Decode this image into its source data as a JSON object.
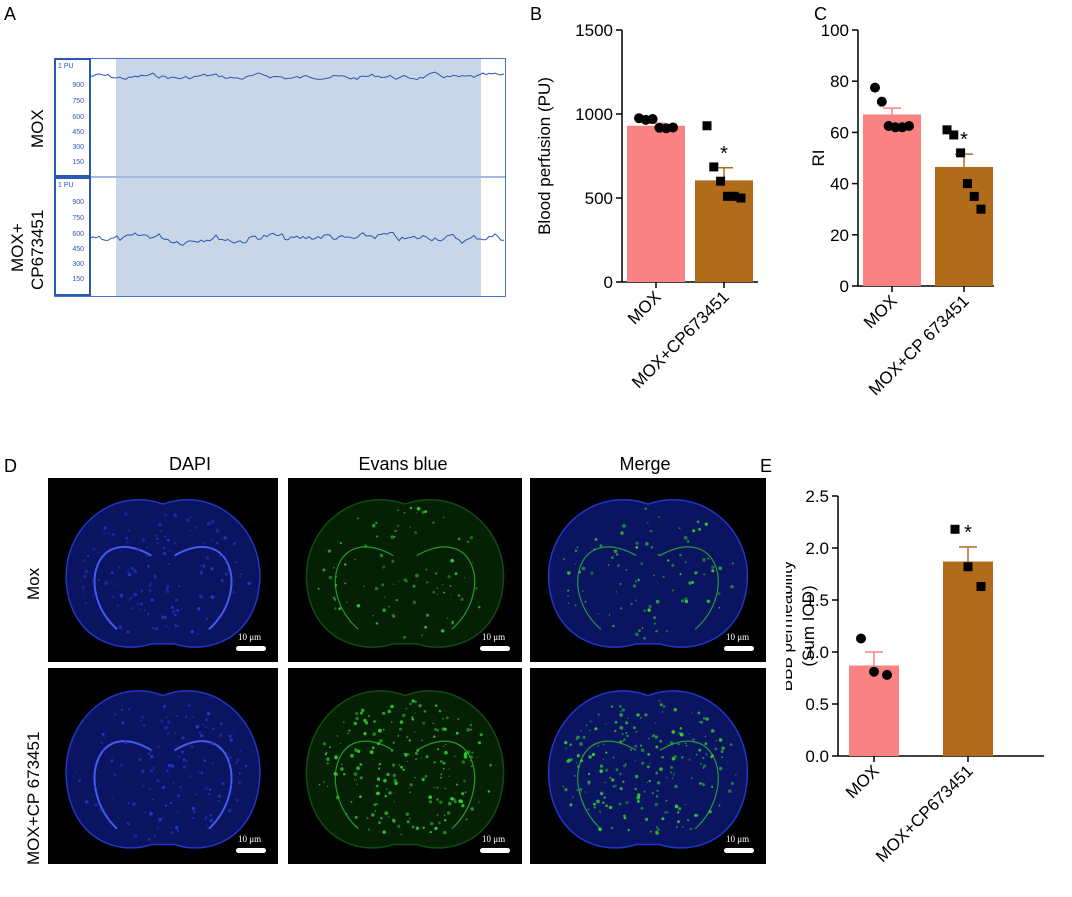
{
  "panels": {
    "A": "A",
    "B": "B",
    "C": "C",
    "D": "D",
    "E": "E"
  },
  "traces": {
    "unit": "1 PU",
    "ticks": [
      "900",
      "750",
      "600",
      "450",
      "300",
      "150"
    ],
    "row_labels": [
      "MOX",
      "MOX+\nCP673451"
    ],
    "row1_label": "MOX",
    "row2_label_line1": "MOX+",
    "row2_label_line2": "CP673451"
  },
  "micro": {
    "columns": [
      "DAPI",
      "Evans blue",
      "Merge"
    ],
    "rows": [
      "Mox",
      "MOX+CP 673451"
    ],
    "scale": "10 μm",
    "colors": {
      "dapi": "#2236c8",
      "evans": "#2fd12f"
    }
  },
  "chart_data": [
    {
      "id": "B",
      "type": "bar",
      "categories": [
        "MOX",
        "MOX+CP673451"
      ],
      "values": [
        930,
        605
      ],
      "errors": [
        15,
        75
      ],
      "points": [
        [
          975,
          965,
          970,
          918,
          915,
          920
        ],
        [
          930,
          685,
          600,
          510,
          510,
          500
        ]
      ],
      "colors": [
        "#f98283",
        "#b06c1b"
      ],
      "ylabel": "Blood perfusion (PU)",
      "ylim": [
        0,
        1500
      ],
      "yticks": [
        "0",
        "500",
        "1000",
        "1500"
      ],
      "significance": [
        "",
        "*"
      ]
    },
    {
      "id": "C",
      "type": "bar",
      "categories": [
        "MOX",
        "MOX+CP 673451"
      ],
      "values": [
        67,
        46.5
      ],
      "errors": [
        2.5,
        5
      ],
      "points": [
        [
          77.5,
          72,
          62.5,
          62,
          62,
          62.5
        ],
        [
          61,
          59,
          52,
          40,
          35,
          30
        ]
      ],
      "colors": [
        "#f98283",
        "#b06c1b"
      ],
      "ylabel": "RI",
      "ylim": [
        0,
        100
      ],
      "yticks": [
        "0",
        "20",
        "40",
        "60",
        "80",
        "100"
      ],
      "significance": [
        "",
        "*"
      ]
    },
    {
      "id": "E",
      "type": "bar",
      "categories": [
        "MOX",
        "MOX+CP673451"
      ],
      "values": [
        0.87,
        1.87
      ],
      "errors": [
        0.13,
        0.14
      ],
      "points": [
        [
          1.13,
          0.81,
          0.78
        ],
        [
          2.18,
          1.82,
          1.63
        ]
      ],
      "colors": [
        "#f98283",
        "#b06c1b"
      ],
      "ylabel": "BBB permeability",
      "ylabel2": "(Sum IOD)",
      "ylim": [
        0,
        2.5
      ],
      "yticks": [
        "0.0",
        "0.5",
        "1.0",
        "1.5",
        "2.0",
        "2.5"
      ],
      "significance": [
        "",
        "*"
      ]
    }
  ]
}
